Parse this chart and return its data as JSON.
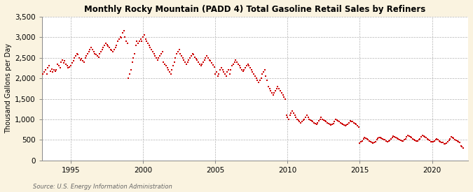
{
  "title": "Monthly Rocky Mountain (PADD 4) Total Gasoline Retail Sales by Refiners",
  "ylabel": "Thousand Gallons per Day",
  "source": "Source: U.S. Energy Information Administration",
  "xlim": [
    1993.0,
    2022.5
  ],
  "ylim": [
    0,
    3500
  ],
  "yticks": [
    0,
    500,
    1000,
    1500,
    2000,
    2500,
    3000,
    3500
  ],
  "xticks": [
    1995,
    2000,
    2005,
    2010,
    2015,
    2020
  ],
  "background_color": "#FAF3E0",
  "plot_bg_color": "#FFFFFF",
  "dot_color": "#CC0000",
  "dot_size": 4,
  "grid_color": "#AAAAAA",
  "data_x": [
    1993.08,
    1993.17,
    1993.25,
    1993.33,
    1993.42,
    1993.5,
    1993.58,
    1993.67,
    1993.75,
    1993.83,
    1993.92,
    1994.0,
    1994.08,
    1994.17,
    1994.25,
    1994.33,
    1994.42,
    1994.5,
    1994.58,
    1994.67,
    1994.75,
    1994.83,
    1994.92,
    1995.0,
    1995.08,
    1995.17,
    1995.25,
    1995.33,
    1995.42,
    1995.5,
    1995.58,
    1995.67,
    1995.75,
    1995.83,
    1995.92,
    1996.0,
    1996.08,
    1996.17,
    1996.25,
    1996.33,
    1996.42,
    1996.5,
    1996.58,
    1996.67,
    1996.75,
    1996.83,
    1996.92,
    1997.0,
    1997.08,
    1997.17,
    1997.25,
    1997.33,
    1997.42,
    1997.5,
    1997.58,
    1997.67,
    1997.75,
    1997.83,
    1997.92,
    1998.0,
    1998.08,
    1998.17,
    1998.25,
    1998.33,
    1998.42,
    1998.5,
    1998.58,
    1998.67,
    1998.75,
    1998.83,
    1998.92,
    1999.0,
    1999.08,
    1999.17,
    1999.25,
    1999.33,
    1999.42,
    1999.5,
    1999.58,
    1999.67,
    1999.75,
    1999.83,
    1999.92,
    2000.0,
    2000.08,
    2000.17,
    2000.25,
    2000.33,
    2000.42,
    2000.5,
    2000.58,
    2000.67,
    2000.75,
    2000.83,
    2000.92,
    2001.0,
    2001.08,
    2001.17,
    2001.25,
    2001.33,
    2001.42,
    2001.5,
    2001.58,
    2001.67,
    2001.75,
    2001.83,
    2001.92,
    2002.0,
    2002.08,
    2002.17,
    2002.25,
    2002.33,
    2002.42,
    2002.5,
    2002.58,
    2002.67,
    2002.75,
    2002.83,
    2002.92,
    2003.0,
    2003.08,
    2003.17,
    2003.25,
    2003.33,
    2003.42,
    2003.5,
    2003.58,
    2003.67,
    2003.75,
    2003.83,
    2003.92,
    2004.0,
    2004.08,
    2004.17,
    2004.25,
    2004.33,
    2004.42,
    2004.5,
    2004.58,
    2004.67,
    2004.75,
    2004.83,
    2004.92,
    2005.0,
    2005.08,
    2005.17,
    2005.25,
    2005.33,
    2005.42,
    2005.5,
    2005.58,
    2005.67,
    2005.75,
    2005.83,
    2005.92,
    2006.0,
    2006.08,
    2006.17,
    2006.25,
    2006.33,
    2006.42,
    2006.5,
    2006.58,
    2006.67,
    2006.75,
    2006.83,
    2006.92,
    2007.0,
    2007.08,
    2007.17,
    2007.25,
    2007.33,
    2007.42,
    2007.5,
    2007.58,
    2007.67,
    2007.75,
    2007.83,
    2007.92,
    2008.0,
    2008.08,
    2008.17,
    2008.25,
    2008.33,
    2008.42,
    2008.5,
    2008.58,
    2008.67,
    2008.75,
    2008.83,
    2008.92,
    2009.0,
    2009.08,
    2009.17,
    2009.25,
    2009.33,
    2009.42,
    2009.5,
    2009.58,
    2009.67,
    2009.75,
    2009.83,
    2009.92,
    2010.0,
    2010.08,
    2010.17,
    2010.25,
    2010.33,
    2010.42,
    2010.5,
    2010.58,
    2010.67,
    2010.75,
    2010.83,
    2010.92,
    2011.0,
    2011.08,
    2011.17,
    2011.25,
    2011.33,
    2011.42,
    2011.5,
    2011.58,
    2011.67,
    2011.75,
    2011.83,
    2011.92,
    2012.0,
    2012.08,
    2012.17,
    2012.25,
    2012.33,
    2012.42,
    2012.5,
    2012.58,
    2012.67,
    2012.75,
    2012.83,
    2012.92,
    2013.0,
    2013.08,
    2013.17,
    2013.25,
    2013.33,
    2013.42,
    2013.5,
    2013.58,
    2013.67,
    2013.75,
    2013.83,
    2013.92,
    2014.0,
    2014.08,
    2014.17,
    2014.25,
    2014.33,
    2014.42,
    2014.5,
    2014.58,
    2014.67,
    2014.75,
    2014.83,
    2014.92,
    2015.0,
    2015.08,
    2015.17,
    2015.25,
    2015.33,
    2015.42,
    2015.5,
    2015.58,
    2015.67,
    2015.75,
    2015.83,
    2015.92,
    2016.0,
    2016.08,
    2016.17,
    2016.25,
    2016.33,
    2016.42,
    2016.5,
    2016.58,
    2016.67,
    2016.75,
    2016.83,
    2016.92,
    2017.0,
    2017.08,
    2017.17,
    2017.25,
    2017.33,
    2017.42,
    2017.5,
    2017.58,
    2017.67,
    2017.75,
    2017.83,
    2017.92,
    2018.0,
    2018.08,
    2018.17,
    2018.25,
    2018.33,
    2018.42,
    2018.5,
    2018.58,
    2018.67,
    2018.75,
    2018.83,
    2018.92,
    2019.0,
    2019.08,
    2019.17,
    2019.25,
    2019.33,
    2019.42,
    2019.5,
    2019.58,
    2019.67,
    2019.75,
    2019.83,
    2019.92,
    2020.0,
    2020.08,
    2020.17,
    2020.25,
    2020.33,
    2020.42,
    2020.5,
    2020.58,
    2020.67,
    2020.75,
    2020.83,
    2020.92,
    2021.0,
    2021.08,
    2021.17,
    2021.25,
    2021.33,
    2021.42,
    2021.5,
    2021.58,
    2021.67,
    2021.75,
    2021.83,
    2021.92,
    2022.0,
    2022.08,
    2022.17
  ],
  "data_y": [
    2100,
    2150,
    2200,
    2100,
    2250,
    2300,
    2180,
    2220,
    2150,
    2200,
    2180,
    2200,
    2350,
    2300,
    2250,
    2400,
    2450,
    2380,
    2420,
    2350,
    2300,
    2250,
    2280,
    2300,
    2380,
    2420,
    2500,
    2550,
    2600,
    2580,
    2500,
    2450,
    2480,
    2420,
    2400,
    2500,
    2550,
    2600,
    2650,
    2700,
    2750,
    2700,
    2650,
    2600,
    2580,
    2550,
    2520,
    2600,
    2650,
    2700,
    2750,
    2800,
    2850,
    2820,
    2780,
    2750,
    2700,
    2680,
    2650,
    2700,
    2750,
    2800,
    2900,
    2950,
    3000,
    2980,
    3100,
    3150,
    3000,
    2900,
    2850,
    2000,
    2100,
    2200,
    2400,
    2500,
    2600,
    2800,
    2900,
    2850,
    2900,
    2950,
    2900,
    3000,
    3050,
    2950,
    2900,
    2850,
    2800,
    2750,
    2700,
    2650,
    2600,
    2550,
    2500,
    2450,
    2500,
    2550,
    2600,
    2650,
    2400,
    2350,
    2300,
    2250,
    2200,
    2150,
    2100,
    2200,
    2300,
    2400,
    2500,
    2600,
    2650,
    2700,
    2600,
    2550,
    2500,
    2450,
    2400,
    2350,
    2400,
    2450,
    2500,
    2550,
    2600,
    2580,
    2520,
    2480,
    2440,
    2400,
    2350,
    2300,
    2350,
    2400,
    2450,
    2500,
    2550,
    2500,
    2450,
    2420,
    2380,
    2320,
    2280,
    2100,
    2150,
    2050,
    2100,
    2200,
    2250,
    2200,
    2150,
    2100,
    2050,
    2150,
    2200,
    2100,
    2200,
    2300,
    2350,
    2400,
    2450,
    2400,
    2350,
    2300,
    2250,
    2200,
    2180,
    2200,
    2250,
    2300,
    2350,
    2300,
    2250,
    2200,
    2150,
    2100,
    2050,
    2000,
    1950,
    1900,
    1950,
    2000,
    2100,
    2150,
    2200,
    2050,
    1950,
    1800,
    1750,
    1700,
    1650,
    1600,
    1650,
    1700,
    1750,
    1800,
    1750,
    1700,
    1650,
    1600,
    1550,
    1500,
    1100,
    1050,
    1000,
    1100,
    1150,
    1200,
    1150,
    1100,
    1050,
    1000,
    980,
    950,
    920,
    950,
    980,
    1000,
    1050,
    1100,
    1050,
    1000,
    980,
    960,
    940,
    920,
    900,
    880,
    920,
    960,
    1000,
    1050,
    1000,
    980,
    960,
    940,
    920,
    900,
    880,
    860,
    880,
    900,
    950,
    1000,
    980,
    960,
    940,
    920,
    900,
    880,
    860,
    840,
    860,
    880,
    920,
    960,
    950,
    940,
    920,
    900,
    880,
    850,
    820,
    420,
    450,
    480,
    520,
    560,
    540,
    520,
    500,
    480,
    460,
    440,
    420,
    440,
    460,
    500,
    540,
    560,
    560,
    540,
    520,
    510,
    500,
    480,
    460,
    470,
    490,
    520,
    560,
    590,
    580,
    560,
    540,
    520,
    510,
    490,
    470,
    480,
    500,
    530,
    570,
    600,
    590,
    570,
    550,
    530,
    510,
    490,
    470,
    480,
    500,
    530,
    570,
    600,
    590,
    570,
    550,
    530,
    510,
    490,
    460,
    450,
    460,
    480,
    500,
    520,
    500,
    480,
    460,
    440,
    430,
    410,
    400,
    420,
    450,
    490,
    530,
    570,
    560,
    540,
    510,
    490,
    470,
    450,
    440,
    350,
    330,
    300
  ]
}
